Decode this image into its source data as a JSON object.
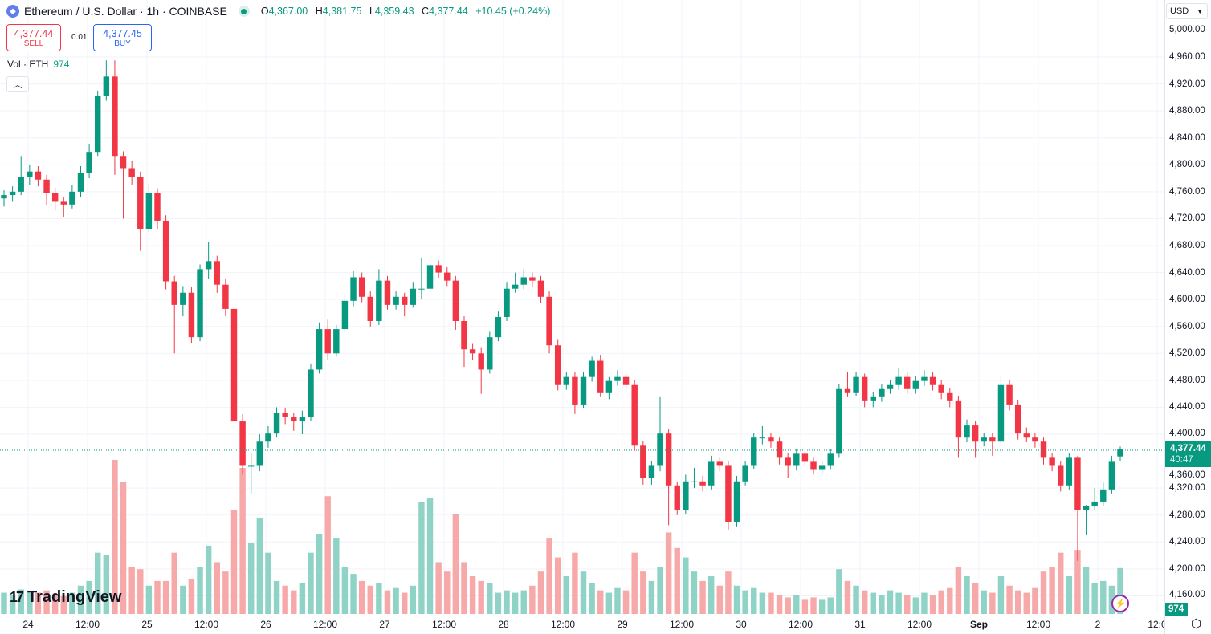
{
  "header": {
    "title": "Ethereum / U.S. Dollar · 1h · COINBASE",
    "o_label": "O",
    "o": "4,367.00",
    "h_label": "H",
    "h": "4,381.75",
    "l_label": "L",
    "l": "4,359.43",
    "c_label": "C",
    "c": "4,377.44",
    "change": "+10.45 (+0.24%)"
  },
  "trade": {
    "sell_price": "4,377.44",
    "sell_label": "SELL",
    "spread": "0.01",
    "buy_price": "4,377.45",
    "buy_label": "BUY"
  },
  "volume_legend": {
    "label": "Vol · ETH",
    "value": "974"
  },
  "currency": "USD",
  "current_price": {
    "price": "4,377.44",
    "countdown": "40:47",
    "volume": "974"
  },
  "logo": "TradingView",
  "colors": {
    "up": "#089981",
    "down": "#f23645",
    "vol_up": "#8fd3c7",
    "vol_down": "#f7a8a8",
    "grid": "#f0f3fa"
  },
  "chart_data": {
    "type": "candlestick",
    "interval": "1h",
    "ylim": [
      4140,
      5010
    ],
    "y_ticks": [
      "5,000.00",
      "4,960.00",
      "4,920.00",
      "4,880.00",
      "4,840.00",
      "4,800.00",
      "4,760.00",
      "4,720.00",
      "4,680.00",
      "4,640.00",
      "4,600.00",
      "4,560.00",
      "4,520.00",
      "4,480.00",
      "4,440.00",
      "4,400.00",
      "4,360.00",
      "4,320.00",
      "4,280.00",
      "4,240.00",
      "4,200.00",
      "4,160.00"
    ],
    "x_ticks": [
      "24",
      "12:00",
      "25",
      "12:00",
      "26",
      "12:00",
      "27",
      "12:00",
      "28",
      "12:00",
      "29",
      "12:00",
      "30",
      "12:00",
      "31",
      "12:00",
      "Sep",
      "12:00",
      "2",
      "12:0"
    ],
    "grid": true,
    "columns": [
      "open",
      "high",
      "low",
      "close",
      "volume"
    ],
    "candles": [
      [
        4750,
        4762,
        4738,
        4755,
        450
      ],
      [
        4755,
        4768,
        4745,
        4760,
        400
      ],
      [
        4760,
        4812,
        4755,
        4782,
        520
      ],
      [
        4782,
        4800,
        4770,
        4790,
        480
      ],
      [
        4790,
        4798,
        4768,
        4778,
        450
      ],
      [
        4778,
        4785,
        4740,
        4758,
        500
      ],
      [
        4758,
        4766,
        4732,
        4745,
        420
      ],
      [
        4745,
        4752,
        4722,
        4741,
        380
      ],
      [
        4741,
        4770,
        4735,
        4760,
        450
      ],
      [
        4760,
        4798,
        4752,
        4788,
        600
      ],
      [
        4788,
        4830,
        4780,
        4818,
        700
      ],
      [
        4818,
        4910,
        4812,
        4902,
        1300
      ],
      [
        4902,
        4955,
        4895,
        4931,
        1250
      ],
      [
        4931,
        4955,
        4785,
        4812,
        3270
      ],
      [
        4812,
        4820,
        4720,
        4795,
        2800
      ],
      [
        4795,
        4806,
        4770,
        4782,
        1000
      ],
      [
        4782,
        4790,
        4672,
        4705,
        950
      ],
      [
        4705,
        4772,
        4700,
        4758,
        600
      ],
      [
        4758,
        4765,
        4705,
        4717,
        700
      ],
      [
        4717,
        4725,
        4615,
        4627,
        700
      ],
      [
        4627,
        4635,
        4520,
        4592,
        1300
      ],
      [
        4592,
        4620,
        4575,
        4610,
        600
      ],
      [
        4610,
        4618,
        4535,
        4544,
        750
      ],
      [
        4544,
        4652,
        4538,
        4645,
        1000
      ],
      [
        4645,
        4685,
        4630,
        4657,
        1450
      ],
      [
        4657,
        4665,
        4610,
        4622,
        1100
      ],
      [
        4622,
        4630,
        4575,
        4586,
        900
      ],
      [
        4586,
        4592,
        4410,
        4419,
        2200
      ],
      [
        4419,
        4430,
        4340,
        4353,
        3100
      ],
      [
        4353,
        4372,
        4312,
        4353,
        1500
      ],
      [
        4353,
        4400,
        4345,
        4389,
        2040
      ],
      [
        4389,
        4412,
        4380,
        4401,
        1300
      ],
      [
        4401,
        4440,
        4395,
        4431,
        700
      ],
      [
        4431,
        4438,
        4415,
        4425,
        600
      ],
      [
        4425,
        4432,
        4405,
        4419,
        500
      ],
      [
        4419,
        4435,
        4400,
        4425,
        650
      ],
      [
        4425,
        4505,
        4420,
        4496,
        1300
      ],
      [
        4496,
        4566,
        4490,
        4556,
        1700
      ],
      [
        4556,
        4570,
        4510,
        4520,
        2500
      ],
      [
        4520,
        4562,
        4515,
        4556,
        1600
      ],
      [
        4556,
        4608,
        4550,
        4598,
        1000
      ],
      [
        4598,
        4642,
        4590,
        4633,
        850
      ],
      [
        4633,
        4640,
        4596,
        4604,
        700
      ],
      [
        4604,
        4612,
        4560,
        4568,
        600
      ],
      [
        4568,
        4645,
        4562,
        4628,
        650
      ],
      [
        4628,
        4635,
        4585,
        4592,
        500
      ],
      [
        4592,
        4612,
        4585,
        4604,
        550
      ],
      [
        4604,
        4610,
        4575,
        4592,
        450
      ],
      [
        4592,
        4625,
        4588,
        4616,
        600
      ],
      [
        4616,
        4662,
        4600,
        4616,
        2380
      ],
      [
        4616,
        4665,
        4610,
        4651,
        2470
      ],
      [
        4651,
        4658,
        4632,
        4640,
        1100
      ],
      [
        4640,
        4648,
        4620,
        4628,
        900
      ],
      [
        4628,
        4635,
        4555,
        4568,
        2120
      ],
      [
        4568,
        4575,
        4500,
        4526,
        1100
      ],
      [
        4526,
        4534,
        4510,
        4520,
        800
      ],
      [
        4520,
        4528,
        4460,
        4496,
        700
      ],
      [
        4496,
        4552,
        4490,
        4544,
        650
      ],
      [
        4544,
        4582,
        4538,
        4574,
        450
      ],
      [
        4574,
        4625,
        4568,
        4616,
        500
      ],
      [
        4616,
        4640,
        4610,
        4622,
        450
      ],
      [
        4622,
        4645,
        4615,
        4633,
        500
      ],
      [
        4633,
        4640,
        4618,
        4628,
        600
      ],
      [
        4628,
        4635,
        4595,
        4604,
        900
      ],
      [
        4604,
        4612,
        4520,
        4532,
        1600
      ],
      [
        4532,
        4540,
        4465,
        4473,
        1200
      ],
      [
        4473,
        4492,
        4466,
        4485,
        800
      ],
      [
        4485,
        4492,
        4430,
        4443,
        1300
      ],
      [
        4443,
        4492,
        4438,
        4485,
        900
      ],
      [
        4485,
        4515,
        4478,
        4509,
        650
      ],
      [
        4509,
        4518,
        4455,
        4461,
        500
      ],
      [
        4461,
        4485,
        4452,
        4479,
        450
      ],
      [
        4479,
        4495,
        4472,
        4485,
        550
      ],
      [
        4485,
        4490,
        4465,
        4473,
        500
      ],
      [
        4473,
        4480,
        4375,
        4383,
        1300
      ],
      [
        4383,
        4390,
        4325,
        4335,
        900
      ],
      [
        4335,
        4360,
        4325,
        4353,
        700
      ],
      [
        4353,
        4455,
        4345,
        4401,
        1000
      ],
      [
        4401,
        4408,
        4265,
        4324,
        1730
      ],
      [
        4324,
        4330,
        4280,
        4288,
        1400
      ],
      [
        4288,
        4340,
        4282,
        4330,
        1200
      ],
      [
        4330,
        4350,
        4320,
        4330,
        900
      ],
      [
        4330,
        4338,
        4315,
        4324,
        700
      ],
      [
        4324,
        4368,
        4318,
        4359,
        800
      ],
      [
        4359,
        4365,
        4345,
        4353,
        600
      ],
      [
        4353,
        4360,
        4258,
        4270,
        900
      ],
      [
        4270,
        4338,
        4262,
        4330,
        600
      ],
      [
        4330,
        4360,
        4324,
        4353,
        500
      ],
      [
        4353,
        4402,
        4348,
        4395,
        550
      ],
      [
        4395,
        4412,
        4385,
        4395,
        450
      ],
      [
        4395,
        4402,
        4380,
        4389,
        450
      ],
      [
        4389,
        4395,
        4355,
        4365,
        400
      ],
      [
        4365,
        4372,
        4335,
        4353,
        350
      ],
      [
        4353,
        4378,
        4346,
        4371,
        400
      ],
      [
        4371,
        4378,
        4352,
        4359,
        300
      ],
      [
        4359,
        4365,
        4340,
        4347,
        350
      ],
      [
        4347,
        4360,
        4340,
        4353,
        300
      ],
      [
        4353,
        4378,
        4347,
        4371,
        350
      ],
      [
        4371,
        4475,
        4365,
        4467,
        950
      ],
      [
        4467,
        4492,
        4455,
        4461,
        700
      ],
      [
        4461,
        4492,
        4456,
        4485,
        600
      ],
      [
        4485,
        4490,
        4440,
        4449,
        500
      ],
      [
        4449,
        4462,
        4440,
        4455,
        450
      ],
      [
        4455,
        4475,
        4448,
        4467,
        400
      ],
      [
        4467,
        4480,
        4460,
        4473,
        500
      ],
      [
        4473,
        4498,
        4466,
        4485,
        450
      ],
      [
        4485,
        4492,
        4460,
        4467,
        400
      ],
      [
        4467,
        4486,
        4460,
        4479,
        350
      ],
      [
        4479,
        4495,
        4472,
        4485,
        450
      ],
      [
        4485,
        4492,
        4465,
        4473,
        400
      ],
      [
        4473,
        4480,
        4452,
        4461,
        500
      ],
      [
        4461,
        4468,
        4440,
        4449,
        550
      ],
      [
        4449,
        4456,
        4365,
        4395,
        1000
      ],
      [
        4395,
        4422,
        4388,
        4413,
        800
      ],
      [
        4413,
        4420,
        4365,
        4389,
        650
      ],
      [
        4389,
        4402,
        4382,
        4395,
        500
      ],
      [
        4395,
        4402,
        4368,
        4389,
        450
      ],
      [
        4389,
        4488,
        4382,
        4473,
        800
      ],
      [
        4473,
        4480,
        4435,
        4443,
        600
      ],
      [
        4443,
        4450,
        4392,
        4401,
        500
      ],
      [
        4401,
        4410,
        4388,
        4395,
        450
      ],
      [
        4395,
        4402,
        4380,
        4389,
        550
      ],
      [
        4389,
        4395,
        4355,
        4365,
        900
      ],
      [
        4365,
        4372,
        4345,
        4353,
        1000
      ],
      [
        4353,
        4360,
        4315,
        4324,
        1300
      ],
      [
        4324,
        4372,
        4318,
        4365,
        800
      ],
      [
        4365,
        4368,
        4212,
        4288,
        1360
      ],
      [
        4288,
        4295,
        4250,
        4294,
        1000
      ],
      [
        4294,
        4320,
        4288,
        4300,
        650
      ],
      [
        4300,
        4328,
        4294,
        4318,
        700
      ],
      [
        4318,
        4368,
        4312,
        4359,
        600
      ],
      [
        4367,
        4381.75,
        4359.43,
        4377.44,
        974
      ]
    ]
  }
}
